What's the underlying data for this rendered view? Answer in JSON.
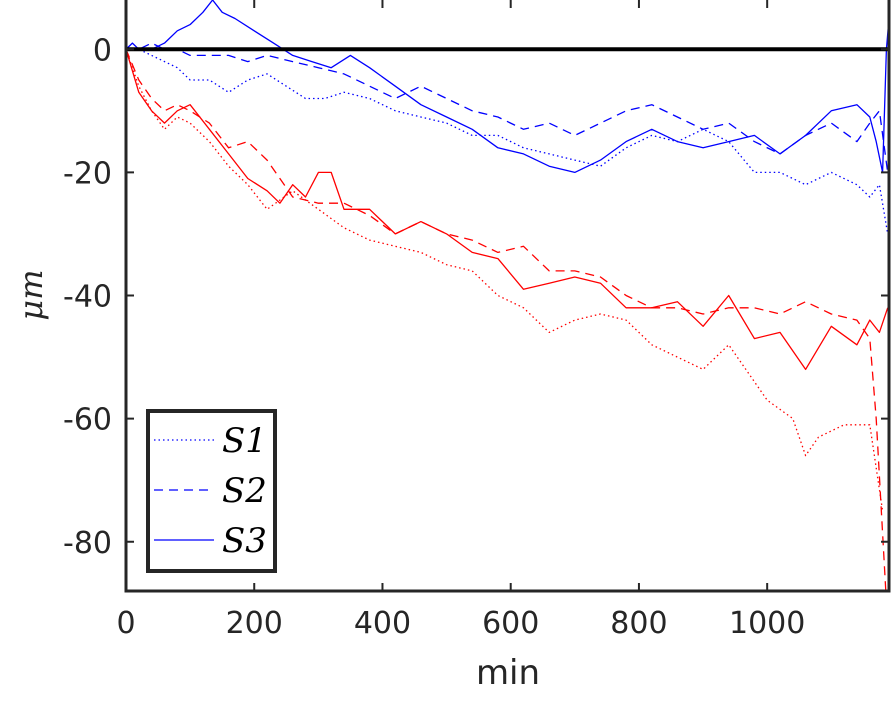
{
  "chart_data": {
    "type": "line",
    "xlabel": "min",
    "ylabel": "μm",
    "xlim": [
      0,
      1190
    ],
    "ylim": [
      -88,
      8
    ],
    "xticks": [
      0,
      200,
      400,
      600,
      800,
      1000
    ],
    "xtick_labels": [
      "0",
      "200",
      "400",
      "600",
      "800",
      "1000"
    ],
    "yticks": [
      0,
      -20,
      -40,
      -60,
      -80
    ],
    "ytick_labels": [
      "0",
      "-20",
      "-40",
      "-60",
      "-80"
    ],
    "grid": false,
    "legend": {
      "position": "bottom-left",
      "entries": [
        {
          "label": "S1",
          "style": "dotted"
        },
        {
          "label": "S2",
          "style": "dashed"
        },
        {
          "label": "S3",
          "style": "solid"
        }
      ]
    },
    "reference_line": {
      "y": 0,
      "color": "#000000"
    },
    "colors": {
      "red": "#ff0000",
      "blue": "#0000ff",
      "axis": "#262626"
    },
    "series": [
      {
        "group": "red",
        "legend_label": "S1",
        "style": "dotted",
        "x": [
          0,
          20,
          40,
          60,
          80,
          100,
          130,
          160,
          190,
          220,
          260,
          300,
          340,
          380,
          420,
          460,
          500,
          540,
          580,
          620,
          660,
          700,
          740,
          780,
          820,
          860,
          900,
          940,
          980,
          1000,
          1040,
          1060,
          1080,
          1120,
          1160,
          1180
        ],
        "y": [
          0,
          -6,
          -10,
          -13,
          -11,
          -12,
          -15,
          -19,
          -22,
          -26,
          -23,
          -26,
          -29,
          -31,
          -32,
          -33,
          -35,
          -36,
          -40,
          -42,
          -46,
          -44,
          -43,
          -44,
          -48,
          -50,
          -52,
          -48,
          -54,
          -57,
          -60,
          -66,
          -63,
          -61,
          -61,
          -75
        ]
      },
      {
        "group": "red",
        "legend_label": "S2",
        "style": "dashed",
        "x": [
          0,
          20,
          40,
          60,
          80,
          100,
          130,
          160,
          190,
          220,
          260,
          300,
          340,
          380,
          420,
          460,
          500,
          540,
          580,
          620,
          660,
          700,
          740,
          780,
          820,
          860,
          900,
          940,
          980,
          1020,
          1060,
          1100,
          1140,
          1160,
          1170,
          1185
        ],
        "y": [
          0,
          -5,
          -8,
          -10,
          -9,
          -10,
          -12,
          -16,
          -15,
          -18,
          -24,
          -25,
          -25,
          -27,
          -30,
          -28,
          -30,
          -31,
          -33,
          -32,
          -36,
          -36,
          -37,
          -40,
          -42,
          -42,
          -43,
          -42,
          -42,
          -43,
          -41,
          -43,
          -44,
          -47,
          -60,
          -88
        ]
      },
      {
        "group": "red",
        "legend_label": "S3",
        "style": "solid",
        "x": [
          0,
          20,
          40,
          60,
          80,
          100,
          130,
          160,
          190,
          220,
          240,
          260,
          280,
          300,
          320,
          340,
          380,
          420,
          460,
          500,
          540,
          580,
          620,
          660,
          700,
          740,
          780,
          820,
          860,
          900,
          940,
          980,
          1020,
          1060,
          1100,
          1140,
          1160,
          1175,
          1188
        ],
        "y": [
          0,
          -7,
          -10,
          -12,
          -10,
          -9,
          -13,
          -17,
          -21,
          -23,
          -25,
          -22,
          -24,
          -20,
          -20,
          -26,
          -26,
          -30,
          -28,
          -30,
          -33,
          -34,
          -39,
          -38,
          -37,
          -38,
          -42,
          -42,
          -41,
          -45,
          -40,
          -47,
          -46,
          -52,
          -45,
          -48,
          -44,
          -46,
          -42
        ]
      },
      {
        "group": "blue",
        "legend_label": "S1",
        "style": "dotted",
        "x": [
          0,
          20,
          40,
          60,
          80,
          100,
          130,
          160,
          190,
          220,
          250,
          280,
          310,
          340,
          380,
          420,
          460,
          500,
          540,
          580,
          620,
          660,
          700,
          740,
          780,
          820,
          860,
          900,
          940,
          980,
          1020,
          1060,
          1100,
          1140,
          1160,
          1175,
          1188
        ],
        "y": [
          0,
          0,
          -1,
          -2,
          -3,
          -5,
          -5,
          -7,
          -5,
          -4,
          -6,
          -8,
          -8,
          -7,
          -8,
          -10,
          -11,
          -12,
          -14,
          -14,
          -16,
          -17,
          -18,
          -19,
          -16,
          -14,
          -15,
          -13,
          -15,
          -20,
          -20,
          -22,
          -20,
          -22,
          -24,
          -22,
          -30
        ]
      },
      {
        "group": "blue",
        "legend_label": "S2",
        "style": "dashed",
        "x": [
          0,
          20,
          40,
          60,
          80,
          100,
          130,
          160,
          190,
          220,
          260,
          300,
          340,
          380,
          420,
          460,
          500,
          540,
          580,
          620,
          660,
          700,
          740,
          780,
          820,
          860,
          900,
          940,
          980,
          1020,
          1060,
          1100,
          1140,
          1160,
          1175,
          1188
        ],
        "y": [
          0,
          0,
          1,
          0,
          0,
          -1,
          -1,
          -1,
          -2,
          -1,
          -2,
          -3,
          -4,
          -6,
          -8,
          -6,
          -8,
          -10,
          -11,
          -13,
          -12,
          -14,
          -12,
          -10,
          -9,
          -11,
          -13,
          -12,
          -15,
          -17,
          -14,
          -12,
          -15,
          -12,
          -10,
          -20
        ]
      },
      {
        "group": "blue",
        "legend_label": "S3",
        "style": "solid",
        "x": [
          0,
          10,
          20,
          40,
          60,
          80,
          100,
          120,
          135,
          150,
          170,
          200,
          230,
          260,
          290,
          320,
          350,
          380,
          420,
          460,
          500,
          540,
          580,
          620,
          660,
          700,
          740,
          780,
          820,
          860,
          900,
          940,
          980,
          1020,
          1060,
          1100,
          1140,
          1160,
          1170,
          1180,
          1186,
          1190
        ],
        "y": [
          0,
          1,
          0,
          0,
          1,
          3,
          4,
          6,
          8,
          6,
          5,
          3,
          1,
          -1,
          -2,
          -3,
          -1,
          -3,
          -6,
          -9,
          -11,
          -13,
          -16,
          -17,
          -19,
          -20,
          -18,
          -15,
          -13,
          -15,
          -16,
          -15,
          -14,
          -17,
          -14,
          -10,
          -9,
          -11,
          -15,
          -20,
          0,
          5
        ]
      }
    ]
  }
}
